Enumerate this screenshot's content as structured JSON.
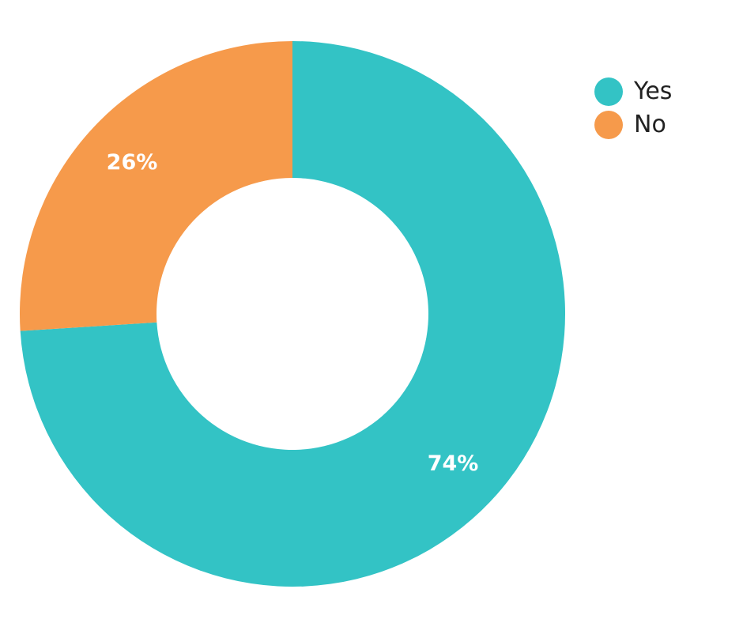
{
  "chart_data": {
    "type": "pie",
    "categories": [
      "Yes",
      "No"
    ],
    "values": [
      74,
      26
    ],
    "value_labels": [
      "74%",
      "26%"
    ],
    "colors": [
      "#33c3c5",
      "#f69a4b"
    ],
    "donut": true,
    "legend": "top-right",
    "title": ""
  }
}
